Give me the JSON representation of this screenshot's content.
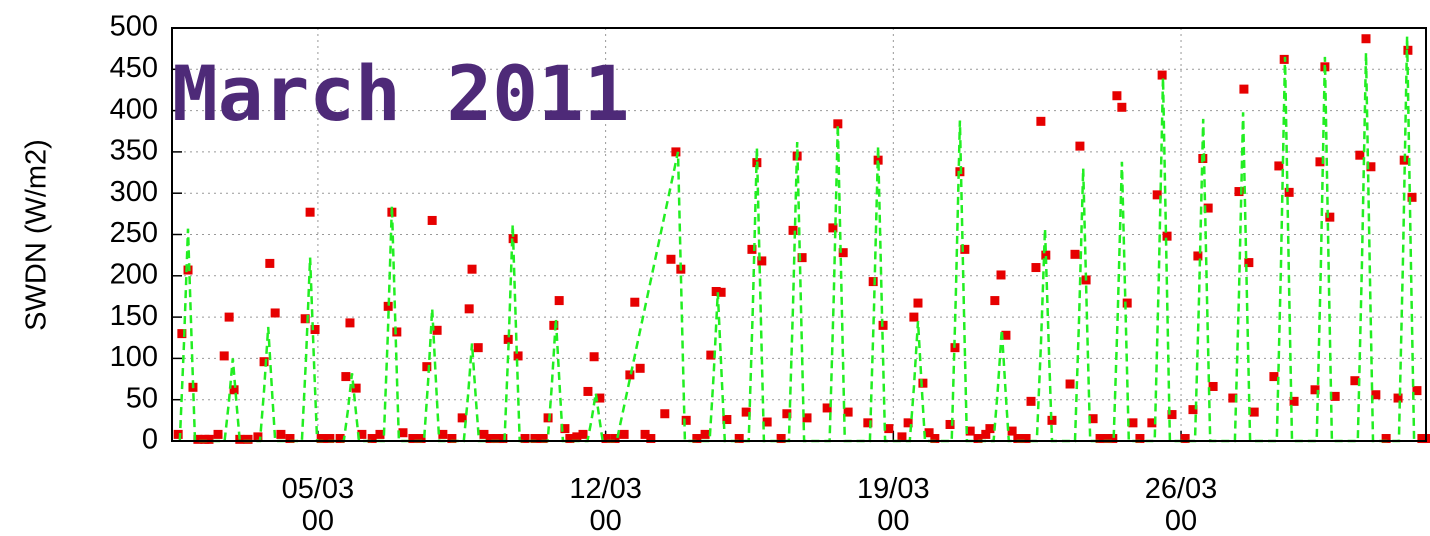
{
  "chart_data": {
    "type": "scatter",
    "title": "March 2011",
    "y_label": "SWDN (W/m2)",
    "xlim": [
      1.45,
      31.96
    ],
    "ylim": [
      0,
      500
    ],
    "yticks": [
      0,
      50,
      100,
      150,
      200,
      250,
      300,
      350,
      400,
      450,
      500
    ],
    "xticks": [
      {
        "value": 5,
        "label": "05/03\n00"
      },
      {
        "value": 12,
        "label": "12/03\n00"
      },
      {
        "value": 19,
        "label": "19/03\n00"
      },
      {
        "value": 26,
        "label": "26/03\n00"
      }
    ],
    "grid": true,
    "series": [
      {
        "type": "scatter",
        "color": "#e60000",
        "x": [
          1.6,
          1.69,
          1.84,
          1.96,
          2.08,
          2.25,
          2.35,
          2.57,
          2.72,
          2.84,
          2.96,
          3.1,
          3.3,
          3.54,
          3.69,
          3.83,
          3.96,
          4.1,
          4.32,
          4.69,
          4.81,
          4.93,
          5.08,
          5.29,
          5.54,
          5.68,
          5.78,
          5.93,
          6.07,
          6.32,
          6.51,
          6.71,
          6.8,
          6.92,
          7.07,
          7.31,
          7.51,
          7.65,
          7.78,
          7.9,
          8.04,
          8.26,
          8.51,
          8.68,
          8.75,
          8.9,
          9.04,
          9.19,
          9.36,
          9.5,
          9.63,
          9.75,
          9.87,
          10.04,
          10.28,
          10.48,
          10.6,
          10.74,
          10.87,
          11.01,
          11.13,
          11.3,
          11.45,
          11.57,
          11.72,
          11.86,
          12.01,
          12.23,
          12.45,
          12.59,
          12.71,
          12.84,
          12.96,
          13.1,
          13.44,
          13.59,
          13.71,
          13.83,
          13.96,
          14.22,
          14.42,
          14.56,
          14.69,
          14.81,
          14.95,
          15.25,
          15.42,
          15.56,
          15.68,
          15.8,
          15.93,
          16.27,
          16.41,
          16.56,
          16.66,
          16.78,
          16.9,
          17.39,
          17.53,
          17.65,
          17.78,
          17.9,
          18.38,
          18.51,
          18.63,
          18.75,
          18.89,
          19.21,
          19.36,
          19.5,
          19.6,
          19.72,
          19.87,
          20.01,
          20.38,
          20.5,
          20.62,
          20.74,
          20.87,
          21.06,
          21.25,
          21.35,
          21.47,
          21.62,
          21.74,
          21.89,
          22.03,
          22.23,
          22.35,
          22.47,
          22.59,
          22.71,
          22.86,
          23.3,
          23.42,
          23.54,
          23.69,
          23.86,
          24.03,
          24.22,
          24.34,
          24.44,
          24.56,
          24.69,
          24.83,
          25.0,
          25.29,
          25.42,
          25.54,
          25.66,
          25.78,
          26.1,
          26.29,
          26.41,
          26.53,
          26.66,
          26.78,
          27.26,
          27.41,
          27.53,
          27.65,
          27.78,
          28.26,
          28.38,
          28.51,
          28.63,
          28.75,
          29.26,
          29.38,
          29.5,
          29.62,
          29.75,
          30.23,
          30.35,
          30.5,
          30.62,
          30.74,
          30.99,
          31.28,
          31.43,
          31.52,
          31.62,
          31.74,
          31.86,
          31.96
        ],
        "values": [
          8,
          130,
          207,
          65,
          2,
          2,
          2,
          8,
          103,
          150,
          62,
          2,
          2,
          5,
          96,
          215,
          155,
          8,
          3,
          148,
          277,
          135,
          3,
          3,
          3,
          78,
          143,
          64,
          8,
          3,
          8,
          163,
          277,
          132,
          10,
          3,
          3,
          90,
          267,
          134,
          8,
          3,
          28,
          160,
          208,
          113,
          8,
          3,
          3,
          3,
          123,
          245,
          103,
          3,
          3,
          3,
          28,
          140,
          170,
          15,
          3,
          5,
          8,
          60,
          102,
          52,
          3,
          3,
          8,
          80,
          168,
          88,
          8,
          3,
          33,
          220,
          350,
          208,
          25,
          3,
          8,
          104,
          181,
          180,
          26,
          3,
          35,
          232,
          337,
          218,
          23,
          3,
          33,
          255,
          345,
          222,
          28,
          40,
          258,
          384,
          228,
          35,
          22,
          193,
          340,
          140,
          15,
          5,
          22,
          150,
          167,
          70,
          10,
          3,
          20,
          113,
          326,
          232,
          12,
          3,
          8,
          15,
          170,
          201,
          128,
          12,
          3,
          3,
          48,
          210,
          387,
          225,
          25,
          69,
          226,
          357,
          195,
          27,
          3,
          3,
          3,
          418,
          404,
          167,
          22,
          3,
          22,
          298,
          443,
          248,
          32,
          3,
          38,
          224,
          342,
          282,
          66,
          52,
          302,
          426,
          216,
          35,
          78,
          333,
          462,
          301,
          48,
          62,
          338,
          453,
          271,
          54,
          73,
          346,
          487,
          332,
          56,
          3,
          52,
          340,
          473,
          295,
          61,
          3,
          3
        ]
      },
      {
        "type": "line",
        "color": "#22ee22",
        "x": [
          1.64,
          1.74,
          1.84,
          1.94,
          2.01,
          2.73,
          2.83,
          2.93,
          3.03,
          3.1,
          3.59,
          3.69,
          3.79,
          3.89,
          3.96,
          4.61,
          4.71,
          4.81,
          4.91,
          4.98,
          5.63,
          5.73,
          5.83,
          5.93,
          6.0,
          6.6,
          6.7,
          6.8,
          6.9,
          6.97,
          7.58,
          7.68,
          7.78,
          7.88,
          7.95,
          8.55,
          8.65,
          8.75,
          8.85,
          8.92,
          9.54,
          9.64,
          9.74,
          9.84,
          9.91,
          10.59,
          10.69,
          10.79,
          10.89,
          10.96,
          11.56,
          11.66,
          11.76,
          11.86,
          11.93,
          12.27,
          13.76,
          13.86,
          13.93,
          14.53,
          14.63,
          14.73,
          14.83,
          14.9,
          15.48,
          15.58,
          15.68,
          15.78,
          15.85,
          16.46,
          16.56,
          16.66,
          16.76,
          16.83,
          17.45,
          17.55,
          17.65,
          17.75,
          17.82,
          18.43,
          18.53,
          18.63,
          18.73,
          18.8,
          19.4,
          19.5,
          19.6,
          19.7,
          19.77,
          20.42,
          20.52,
          20.62,
          20.72,
          20.79,
          21.44,
          21.54,
          21.64,
          21.74,
          21.81,
          22.49,
          22.59,
          22.69,
          22.79,
          22.86,
          23.42,
          23.52,
          23.62,
          23.72,
          23.79,
          24.36,
          24.46,
          24.56,
          24.66,
          24.73,
          25.36,
          25.46,
          25.56,
          25.66,
          25.73,
          26.34,
          26.44,
          26.54,
          26.64,
          26.71,
          27.31,
          27.41,
          27.51,
          27.61,
          27.68,
          28.33,
          28.43,
          28.53,
          28.63,
          28.7,
          29.3,
          29.4,
          29.5,
          29.6,
          29.67,
          30.3,
          30.4,
          30.5,
          30.6,
          30.67,
          31.3,
          31.4,
          31.5,
          31.6,
          31.67
        ],
        "values": [
          0,
          116,
          257,
          103,
          0,
          0,
          45,
          100,
          40,
          0,
          0,
          62,
          138,
          55,
          0,
          0,
          100,
          222,
          89,
          0,
          0,
          37,
          82,
          33,
          0,
          0,
          128,
          285,
          114,
          0,
          0,
          72,
          160,
          64,
          0,
          0,
          53,
          118,
          47,
          0,
          0,
          118,
          262,
          105,
          0,
          0,
          67,
          148,
          59,
          0,
          0,
          26,
          58,
          23,
          0,
          0,
          350,
          140,
          0,
          0,
          81,
          180,
          72,
          0,
          0,
          160,
          355,
          142,
          0,
          0,
          163,
          362,
          145,
          0,
          0,
          172,
          383,
          153,
          0,
          0,
          161,
          357,
          143,
          0,
          0,
          65,
          145,
          58,
          0,
          0,
          175,
          388,
          155,
          0,
          0,
          61,
          135,
          54,
          0,
          0,
          116,
          257,
          103,
          0,
          0,
          149,
          330,
          132,
          0,
          0,
          152,
          338,
          135,
          0,
          0,
          198,
          440,
          176,
          0,
          0,
          176,
          390,
          156,
          0,
          0,
          179,
          398,
          159,
          0,
          0,
          209,
          465,
          186,
          0,
          0,
          209,
          465,
          186,
          0,
          0,
          212,
          470,
          188,
          0,
          0,
          221,
          490,
          196,
          0
        ]
      }
    ]
  }
}
